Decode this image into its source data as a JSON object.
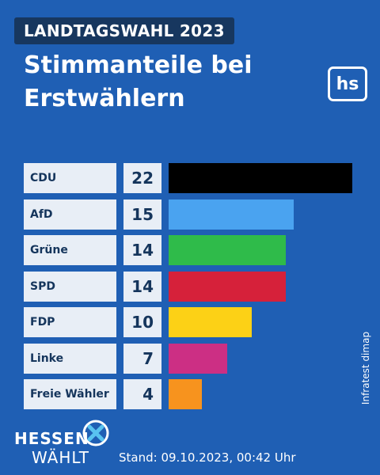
{
  "header": {
    "kicker": "LANDTAGSWAHL 2023",
    "title_line1": "Stimmanteile bei",
    "title_line2": "Erstwählern",
    "logo_text": "hs"
  },
  "source": "Infratest dimap",
  "footer": {
    "brand_line1": "HESSEN",
    "brand_line2": "WÄHLT",
    "brand_icon": "checkmark-cross-icon",
    "stand": "Stand: 09.10.2023, 00:42 Uhr"
  },
  "colors": {
    "background": "#1f5fb4",
    "kicker_background": "#17375f",
    "label_background": "#e8eef6",
    "label_text": "#15355c"
  },
  "chart_data": {
    "type": "bar",
    "orientation": "horizontal",
    "title": "Stimmanteile bei Erstwählern",
    "categories": [
      "CDU",
      "AfD",
      "Grüne",
      "SPD",
      "FDP",
      "Linke",
      "Freie Wähler"
    ],
    "values": [
      22,
      15,
      14,
      14,
      10,
      7,
      4
    ],
    "value_labels": [
      "22",
      "15",
      "14",
      "14",
      "10",
      "7",
      "4"
    ],
    "colors": [
      "#000000",
      "#4aa3f0",
      "#2fbb4a",
      "#d6213a",
      "#fcd116",
      "#cc2f84",
      "#f7931e"
    ],
    "xlim": [
      0,
      22
    ],
    "grid": false,
    "legend": "none"
  }
}
